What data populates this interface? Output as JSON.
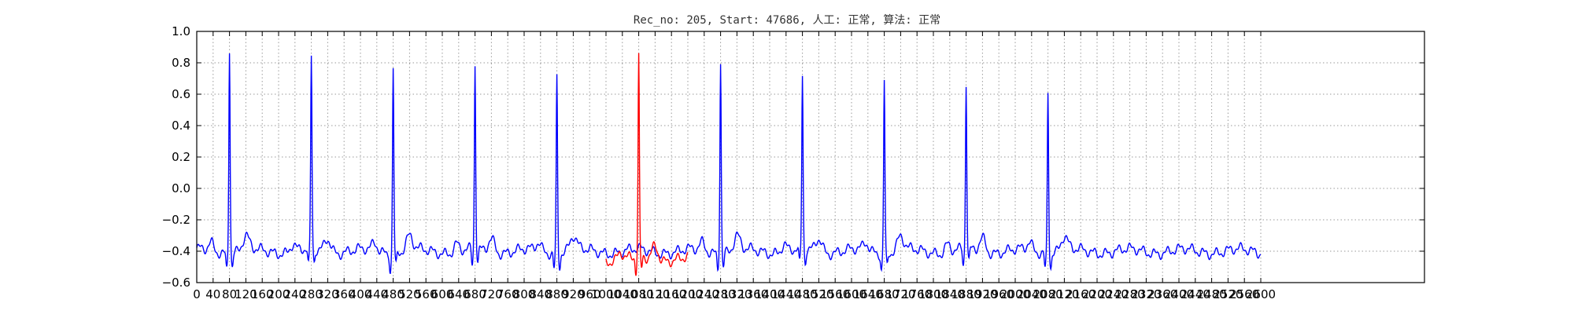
{
  "chart_data": {
    "type": "line",
    "title": "Rec_no: 205, Start: 47686, 人工: 正常, 算法: 正常",
    "xlabel": "",
    "ylabel": "",
    "xlim": [
      0,
      3000
    ],
    "ylim": [
      -0.6,
      1.0
    ],
    "grid": true,
    "legend": "none",
    "y_ticks": [
      "−0.6",
      "−0.4",
      "−0.2",
      "0.0",
      "0.2",
      "0.4",
      "0.6",
      "0.8",
      "1.0"
    ],
    "x_ticks": [
      "0",
      "40",
      "80",
      "120",
      "160",
      "200",
      "240",
      "280",
      "320",
      "360",
      "400",
      "440",
      "480",
      "520",
      "560",
      "600",
      "640",
      "680",
      "720",
      "760",
      "800",
      "840",
      "880",
      "920",
      "960",
      "1000",
      "1040",
      "1080",
      "1120",
      "1160",
      "1200",
      "1240",
      "1280",
      "1320",
      "1360",
      "1400",
      "1440",
      "1480",
      "1520",
      "1560",
      "1600",
      "1640",
      "1680",
      "1720",
      "1760",
      "1800",
      "1840",
      "1880",
      "1920",
      "1960",
      "2000",
      "2040",
      "2080",
      "2120",
      "2160",
      "2200",
      "2240",
      "2280",
      "2320",
      "2360",
      "2400",
      "2440",
      "2480",
      "2520",
      "2560",
      "2600"
    ],
    "series": [
      {
        "color": "#0000ff",
        "beat_times": [
          80,
          280,
          480,
          680,
          880,
          1280,
          1480,
          1680,
          1880,
          2080
        ],
        "peak_values": [
          0.91,
          0.82,
          0.78,
          0.78,
          0.72,
          0.83,
          0.7,
          0.7,
          0.66,
          0.63
        ],
        "x_range": [
          0,
          2600
        ],
        "baseline": -0.4
      },
      {
        "color": "#ff0000",
        "beat_times": [
          1080
        ],
        "peak_values": [
          0.82
        ],
        "x_range": [
          1000,
          1200
        ],
        "baseline": -0.45
      }
    ]
  }
}
